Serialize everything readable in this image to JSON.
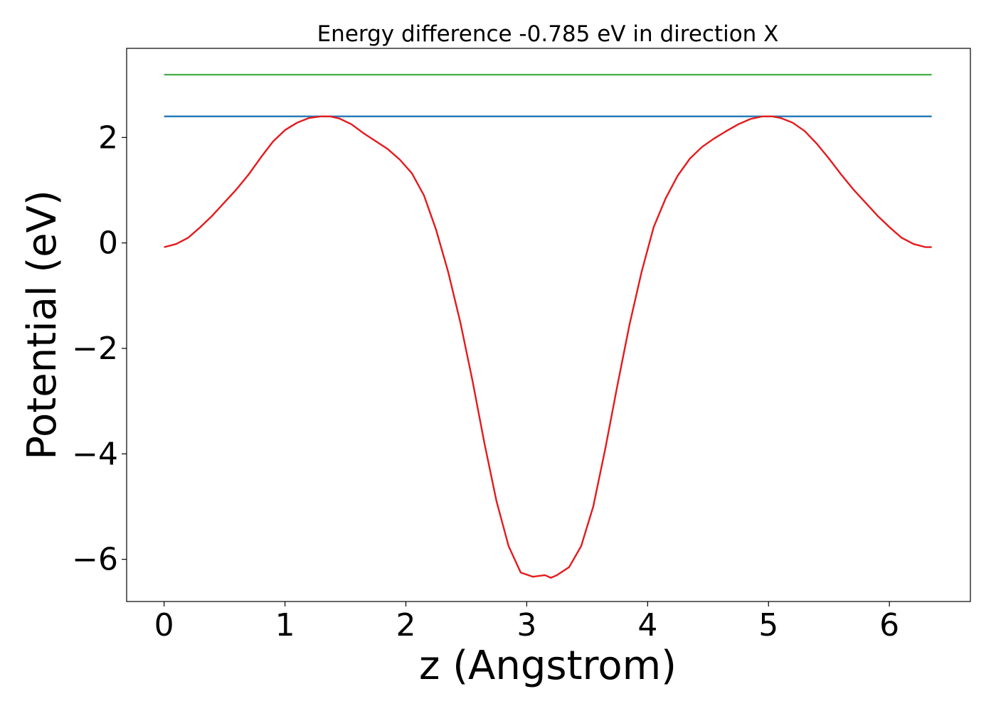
{
  "chart_data": {
    "type": "line",
    "title": "Energy difference -0.785 eV in direction X",
    "xlabel": "z (Angstrom)",
    "ylabel": "Potential (eV)",
    "xlim": [
      -0.31,
      6.67
    ],
    "ylim": [
      -6.8,
      3.69
    ],
    "x_ticks": [
      0,
      1,
      2,
      3,
      4,
      5,
      6
    ],
    "x_tick_labels": [
      "0",
      "1",
      "2",
      "3",
      "4",
      "5",
      "6"
    ],
    "y_ticks": [
      -6,
      -4,
      -2,
      0,
      2
    ],
    "y_tick_labels": [
      "−6",
      "−4",
      "−2",
      "0",
      "2"
    ],
    "grid": false,
    "series": [
      {
        "color": "#e41a1c",
        "x": [
          0,
          0.1,
          0.2,
          0.3,
          0.4,
          0.5,
          0.6,
          0.7,
          0.8,
          0.9,
          1.0,
          1.1,
          1.2,
          1.3,
          1.37,
          1.45,
          1.55,
          1.65,
          1.75,
          1.85,
          1.95,
          2.05,
          2.15,
          2.25,
          2.35,
          2.45,
          2.55,
          2.65,
          2.75,
          2.85,
          2.95,
          3.05,
          3.15,
          3.2,
          3.25,
          3.35,
          3.45,
          3.55,
          3.65,
          3.75,
          3.85,
          3.95,
          4.05,
          4.15,
          4.25,
          4.35,
          4.45,
          4.55,
          4.65,
          4.75,
          4.85,
          4.95,
          5.03,
          5.1,
          5.2,
          5.3,
          5.4,
          5.5,
          5.6,
          5.7,
          5.8,
          5.9,
          6.0,
          6.1,
          6.2,
          6.3,
          6.35
        ],
        "y": [
          -0.08,
          -0.02,
          0.1,
          0.3,
          0.52,
          0.77,
          1.02,
          1.3,
          1.62,
          1.92,
          2.14,
          2.28,
          2.37,
          2.4,
          2.4,
          2.36,
          2.25,
          2.08,
          1.93,
          1.78,
          1.58,
          1.32,
          0.9,
          0.25,
          -0.55,
          -1.5,
          -2.6,
          -3.8,
          -4.9,
          -5.75,
          -6.25,
          -6.33,
          -6.3,
          -6.35,
          -6.3,
          -6.15,
          -5.75,
          -5.0,
          -3.9,
          -2.7,
          -1.55,
          -0.55,
          0.3,
          0.85,
          1.28,
          1.6,
          1.82,
          1.98,
          2.12,
          2.25,
          2.35,
          2.4,
          2.4,
          2.37,
          2.28,
          2.12,
          1.88,
          1.6,
          1.3,
          1.02,
          0.77,
          0.52,
          0.3,
          0.1,
          -0.02,
          -0.08,
          -0.08
        ]
      },
      {
        "color": "#1f77b4",
        "x": [
          0,
          6.35
        ],
        "y": [
          2.4,
          2.4
        ]
      },
      {
        "color": "#4daf4a",
        "x": [
          0,
          6.35
        ],
        "y": [
          3.19,
          3.19
        ]
      }
    ]
  }
}
